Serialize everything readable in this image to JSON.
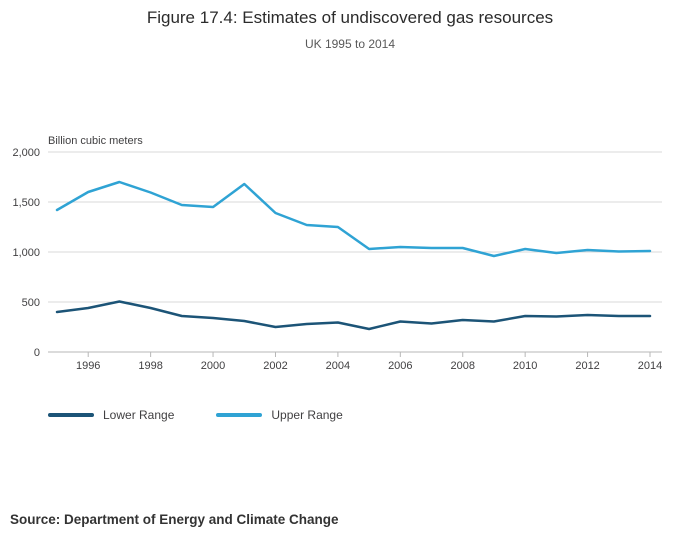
{
  "title": "Figure 17.4: Estimates of undiscovered gas resources",
  "subtitle": "UK 1995 to 2014",
  "source": "Source: Department of Energy and Climate Change",
  "chart_data": {
    "type": "line",
    "unit_label": "Billion cubic meters",
    "x": [
      1995,
      1996,
      1997,
      1998,
      1999,
      2000,
      2001,
      2002,
      2003,
      2004,
      2005,
      2006,
      2007,
      2008,
      2009,
      2010,
      2011,
      2012,
      2013,
      2014
    ],
    "x_ticks": [
      1996,
      1998,
      2000,
      2002,
      2004,
      2006,
      2008,
      2010,
      2012,
      2014
    ],
    "y_ticks": [
      0,
      500,
      1000,
      1500,
      2000
    ],
    "y_tick_labels": [
      "0",
      "500",
      "1,000",
      "1,500",
      "2,000"
    ],
    "ylim": [
      0,
      2000
    ],
    "grid": true,
    "legend_position": "bottom-left",
    "series": [
      {
        "name": "Lower Range",
        "color": "#1c5477",
        "values": [
          400,
          440,
          505,
          440,
          360,
          340,
          310,
          250,
          280,
          295,
          230,
          305,
          285,
          320,
          305,
          360,
          355,
          370,
          360,
          360
        ]
      },
      {
        "name": "Upper Range",
        "color": "#2fa3d4",
        "values": [
          1420,
          1600,
          1700,
          1595,
          1470,
          1450,
          1680,
          1390,
          1270,
          1250,
          1030,
          1050,
          1040,
          1040,
          960,
          1030,
          990,
          1020,
          1005,
          1010
        ]
      }
    ]
  }
}
